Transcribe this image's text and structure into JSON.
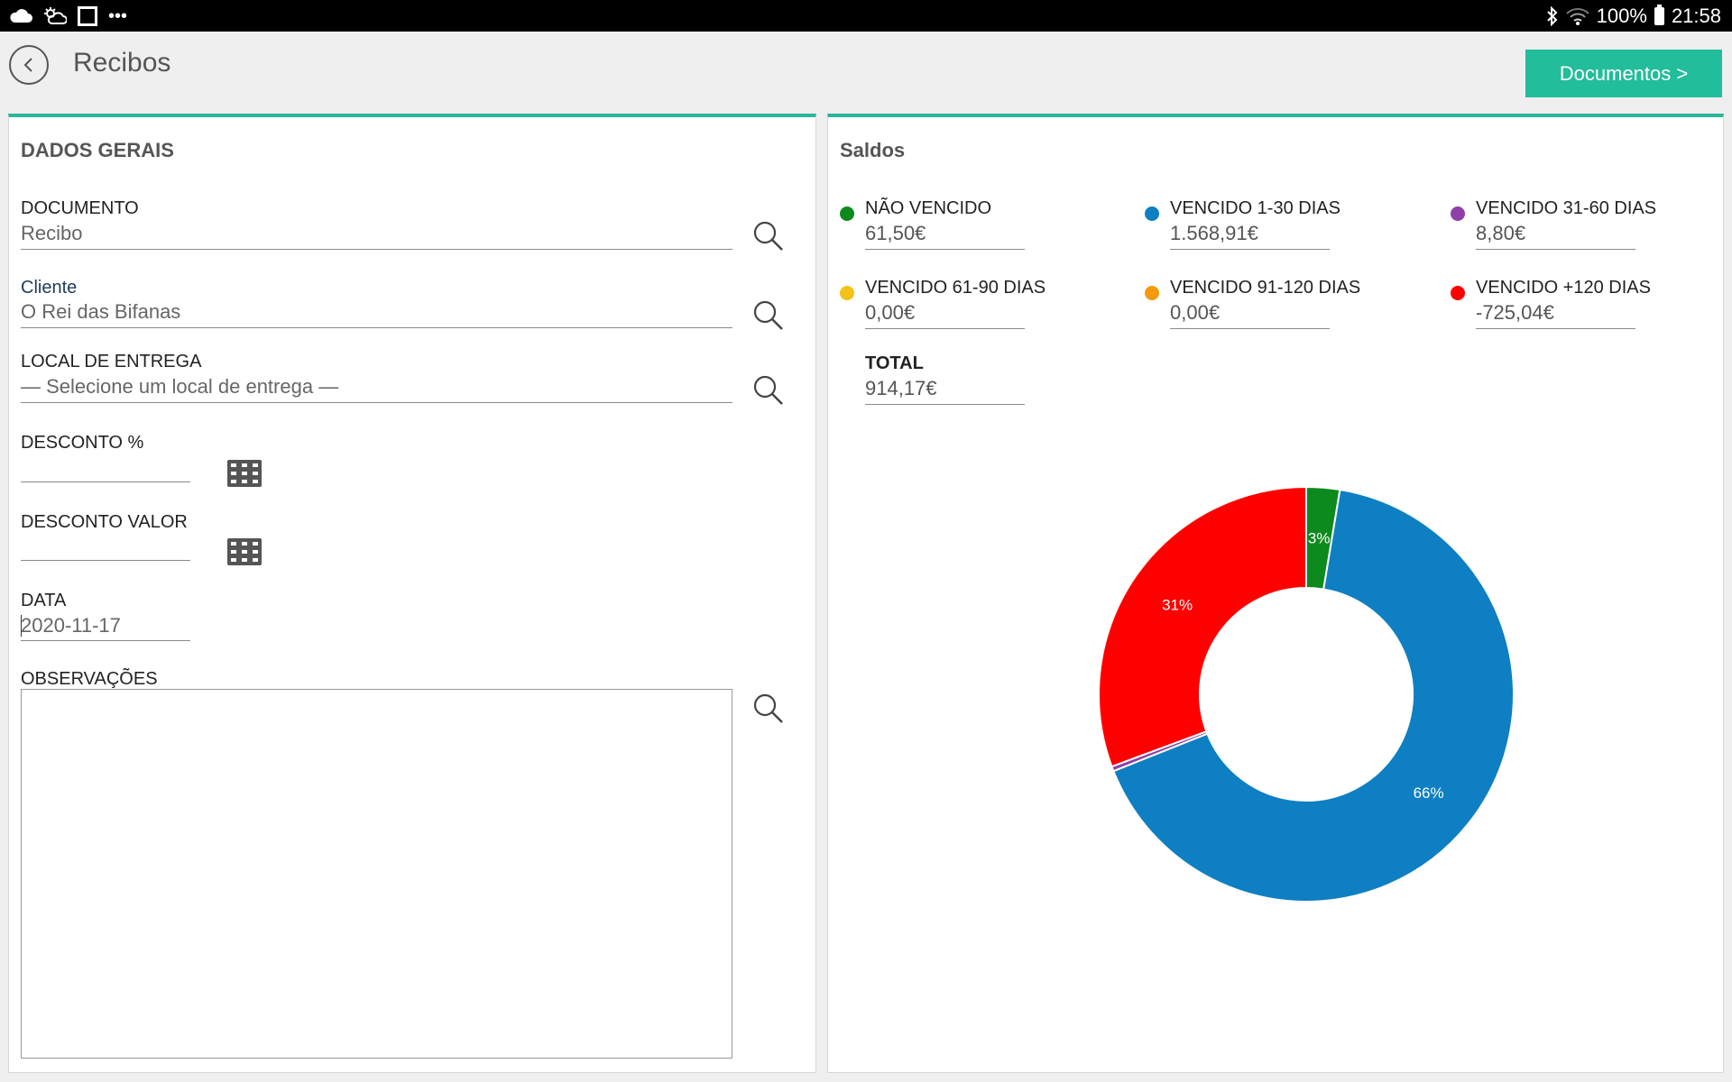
{
  "status_bar": {
    "left_icons": [
      "cloud-icon",
      "sun-cloud-icon",
      "flipboard-icon",
      "more-dots-icon"
    ],
    "more_glyph": "•••",
    "battery_text": "100%",
    "time": "21:58"
  },
  "header": {
    "title": "Recibos",
    "documents_button": "Documentos >"
  },
  "general": {
    "title": "DADOS GERAIS",
    "documento": {
      "label": "DOCUMENTO",
      "value": "Recibo"
    },
    "cliente": {
      "label": "Cliente",
      "value": "O Rei das Bifanas"
    },
    "local_entrega": {
      "label": "LOCAL DE ENTREGA",
      "value": "— Selecione um local de entrega —"
    },
    "desconto_pct": {
      "label": "DESCONTO %",
      "value": ""
    },
    "desconto_valor": {
      "label": "DESCONTO VALOR",
      "value": ""
    },
    "data": {
      "label": "DATA",
      "value": "2020-11-17"
    },
    "observacoes": {
      "label": "OBSERVAÇÕES",
      "value": ""
    }
  },
  "balances": {
    "title": "Saldos",
    "items": [
      {
        "label": "NÃO VENCIDO",
        "value": "61,50€",
        "color": "#0d8a1e"
      },
      {
        "label": "VENCIDO 1-30 DIAS",
        "value": "1.568,91€",
        "color": "#0e7fc2"
      },
      {
        "label": "VENCIDO 31-60 DIAS",
        "value": "8,80€",
        "color": "#8e3fa8"
      },
      {
        "label": "VENCIDO 61-90 DIAS",
        "value": "0,00€",
        "color": "#f5c21b"
      },
      {
        "label": "VENCIDO 91-120 DIAS",
        "value": "0,00€",
        "color": "#f59a0c"
      },
      {
        "label": "VENCIDO +120 DIAS",
        "value": "-725,04€",
        "color": "#ff0000"
      }
    ],
    "total": {
      "label": "TOTAL",
      "value": "914,17€"
    }
  },
  "chart_data": {
    "type": "pie",
    "donut": true,
    "categories": [
      "NÃO VENCIDO",
      "VENCIDO 1-30 DIAS",
      "VENCIDO 31-60 DIAS",
      "VENCIDO 61-90 DIAS",
      "VENCIDO 91-120 DIAS",
      "VENCIDO +120 DIAS"
    ],
    "values": [
      61.5,
      1568.91,
      8.8,
      0.0,
      0.0,
      725.04
    ],
    "data_labels": [
      "3%",
      "66%",
      "",
      "",
      "",
      "31%"
    ],
    "colors": [
      "#0d8a1e",
      "#0e7fc2",
      "#8e3fa8",
      "#f5c21b",
      "#f59a0c",
      "#ff0000"
    ]
  }
}
